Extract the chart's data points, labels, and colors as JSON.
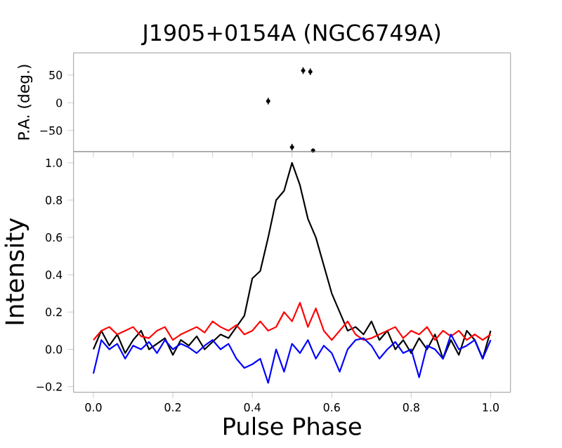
{
  "chart_data": [
    {
      "type": "scatter",
      "title": "J1905+0154A (NGC6749A)",
      "ylabel": "P.A. (deg.)",
      "color": "#000000",
      "x": [
        0.44,
        0.5,
        0.528,
        0.546,
        0.553
      ],
      "values": [
        3,
        -80,
        58,
        56,
        -86
      ],
      "errors": [
        6,
        6,
        6,
        6,
        null
      ],
      "xlim": [
        -0.05,
        1.05
      ],
      "ylim": [
        -88,
        90
      ],
      "yticks": [
        {
          "value": -50,
          "label": "−50"
        },
        0,
        50
      ],
      "tick_labels": "y"
    },
    {
      "type": "line",
      "xlabel": "Pulse Phase",
      "ylabel": "Intensity",
      "x": [
        0,
        0.02,
        0.04,
        0.06,
        0.08,
        0.1,
        0.12,
        0.14,
        0.16,
        0.18,
        0.2,
        0.22,
        0.24,
        0.26,
        0.28,
        0.3,
        0.32,
        0.34,
        0.36,
        0.38,
        0.4,
        0.42,
        0.44,
        0.46,
        0.48,
        0.5,
        0.52,
        0.54,
        0.56,
        0.58,
        0.6,
        0.62,
        0.64,
        0.66,
        0.68,
        0.7,
        0.72,
        0.74,
        0.76,
        0.78,
        0.8,
        0.82,
        0.84,
        0.86,
        0.88,
        0.9,
        0.92,
        0.94,
        0.96,
        0.98,
        1.0
      ],
      "series": [
        {
          "color": "#000000",
          "values": [
            0.0,
            0.1,
            0.02,
            0.08,
            -0.02,
            0.05,
            0.1,
            0.0,
            0.03,
            0.06,
            -0.03,
            0.05,
            0.02,
            0.07,
            0.0,
            0.04,
            0.08,
            0.06,
            0.12,
            0.18,
            0.38,
            0.42,
            0.6,
            0.8,
            0.85,
            1.0,
            0.88,
            0.7,
            0.6,
            0.45,
            0.3,
            0.2,
            0.1,
            0.12,
            0.08,
            0.15,
            0.05,
            0.1,
            0.0,
            0.05,
            -0.02,
            0.06,
            0.0,
            0.08,
            -0.05,
            0.05,
            -0.03,
            0.1,
            0.05,
            -0.05,
            0.1
          ]
        },
        {
          "color": "#ff0000",
          "values": [
            0.05,
            0.1,
            0.12,
            0.08,
            0.1,
            0.12,
            0.07,
            0.06,
            0.1,
            0.12,
            0.05,
            0.08,
            0.1,
            0.12,
            0.09,
            0.15,
            0.12,
            0.1,
            0.13,
            0.08,
            0.1,
            0.15,
            0.1,
            0.12,
            0.2,
            0.15,
            0.25,
            0.12,
            0.22,
            0.1,
            0.05,
            0.1,
            0.15,
            0.08,
            0.05,
            0.06,
            0.08,
            0.1,
            0.12,
            0.06,
            0.1,
            0.08,
            0.12,
            0.05,
            0.1,
            0.07,
            0.1,
            0.05,
            0.08,
            0.05,
            0.08
          ]
        },
        {
          "color": "#0000ff",
          "values": [
            -0.13,
            0.05,
            0.0,
            0.03,
            -0.05,
            0.02,
            0.0,
            0.04,
            -0.02,
            0.05,
            0.0,
            0.03,
            0.01,
            -0.02,
            0.02,
            0.05,
            0.0,
            0.03,
            -0.05,
            -0.1,
            -0.08,
            -0.05,
            -0.18,
            0.0,
            -0.12,
            0.03,
            -0.02,
            0.05,
            -0.05,
            0.02,
            -0.02,
            -0.12,
            0.0,
            0.05,
            0.06,
            0.02,
            -0.05,
            0.0,
            0.04,
            -0.02,
            0.0,
            -0.15,
            0.02,
            0.0,
            -0.05,
            0.08,
            0.0,
            0.02,
            0.05,
            -0.05,
            0.05
          ]
        }
      ],
      "xlim": [
        -0.05,
        1.05
      ],
      "ylim": [
        -0.23,
        1.06
      ],
      "xticks": [
        {
          "value": 0,
          "label": "0.0"
        },
        {
          "value": 0.2,
          "label": "0.2"
        },
        {
          "value": 0.4,
          "label": "0.4"
        },
        {
          "value": 0.6,
          "label": "0.6"
        },
        {
          "value": 0.8,
          "label": "0.8"
        },
        {
          "value": 1,
          "label": "1.0"
        }
      ],
      "yticks": [
        {
          "value": -0.2,
          "label": "−0.2"
        },
        {
          "value": 0,
          "label": "0.0"
        },
        {
          "value": 0.2,
          "label": "0.2"
        },
        {
          "value": 0.4,
          "label": "0.4"
        },
        {
          "value": 0.6,
          "label": "0.6"
        },
        {
          "value": 0.8,
          "label": "0.8"
        },
        {
          "value": 1,
          "label": "1.0"
        }
      ]
    }
  ]
}
